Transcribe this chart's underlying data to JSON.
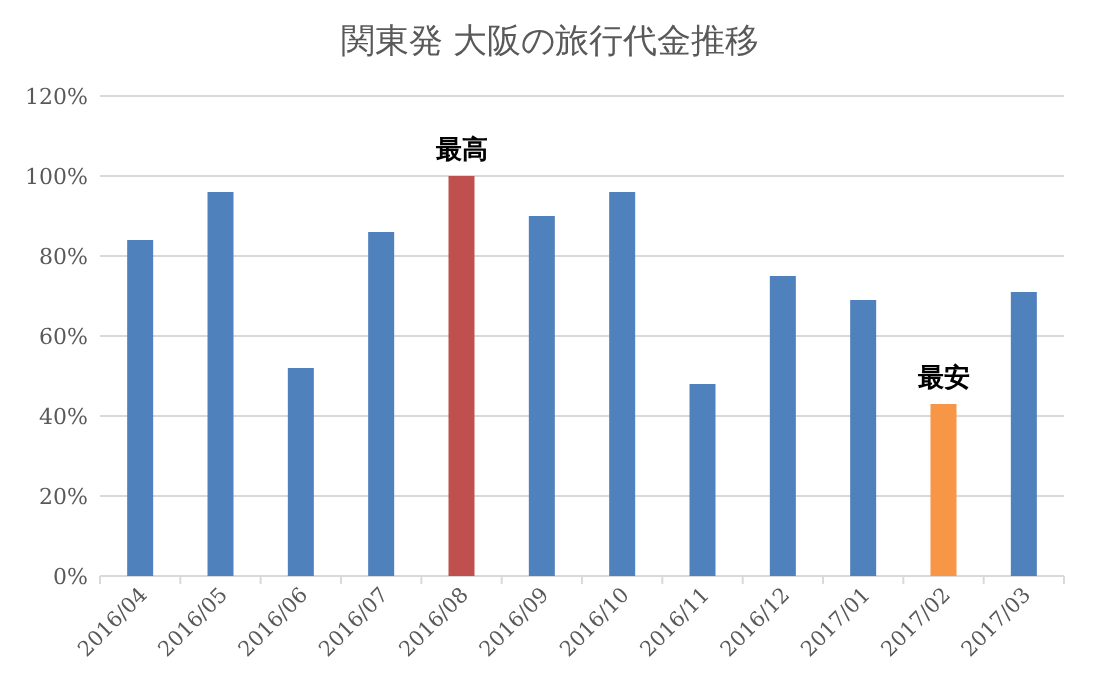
{
  "chart_data": {
    "type": "bar",
    "title": "関東発 大阪の旅行代金推移",
    "categories": [
      "2016/04",
      "2016/05",
      "2016/06",
      "2016/07",
      "2016/08",
      "2016/09",
      "2016/10",
      "2016/11",
      "2016/12",
      "2017/01",
      "2017/02",
      "2017/03"
    ],
    "values": [
      84,
      96,
      52,
      86,
      100,
      90,
      96,
      48,
      75,
      69,
      43,
      71
    ],
    "colors": [
      "#4f81bd",
      "#4f81bd",
      "#4f81bd",
      "#4f81bd",
      "#c0504d",
      "#4f81bd",
      "#4f81bd",
      "#4f81bd",
      "#4f81bd",
      "#4f81bd",
      "#f79646",
      "#4f81bd"
    ],
    "ylim": [
      0,
      120
    ],
    "yticks": [
      {
        "value": 0,
        "label": "0%"
      },
      {
        "value": 20,
        "label": "20%"
      },
      {
        "value": 40,
        "label": "40%"
      },
      {
        "value": 60,
        "label": "60%"
      },
      {
        "value": 80,
        "label": "80%"
      },
      {
        "value": 100,
        "label": "100%"
      },
      {
        "value": 120,
        "label": "120%"
      }
    ],
    "grid": "y",
    "annotations": [
      {
        "text": "最高",
        "x": "2016/08",
        "y": 100
      },
      {
        "text": "最安",
        "x": "2017/02",
        "y": 43
      }
    ]
  }
}
